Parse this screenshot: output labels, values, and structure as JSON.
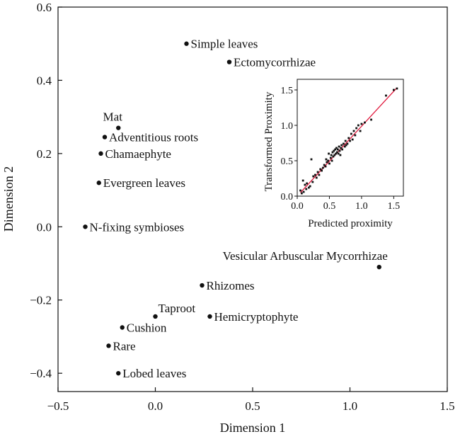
{
  "chart_data": [
    {
      "type": "scatter",
      "xlabel": "Dimension 1",
      "ylabel": "Dimension 2",
      "xlim": [
        -0.5,
        1.5
      ],
      "ylim": [
        -0.45,
        0.6
      ],
      "xticks": [
        -0.5,
        0.0,
        0.5,
        1.0,
        1.5
      ],
      "xtick_labels": [
        "−0.5",
        "0.0",
        "0.5",
        "1.0",
        "1.5"
      ],
      "yticks": [
        -0.4,
        -0.2,
        0.0,
        0.2,
        0.4,
        0.6
      ],
      "ytick_labels": [
        "−0.4",
        "−0.2",
        "0.0",
        "0.2",
        "0.4",
        "0.6"
      ],
      "grid": false,
      "points": [
        {
          "label": "Simple leaves",
          "x": 0.16,
          "y": 0.5
        },
        {
          "label": "Ectomycorrhizae",
          "x": 0.38,
          "y": 0.45
        },
        {
          "label": "Mat",
          "x": -0.19,
          "y": 0.27
        },
        {
          "label": "Adventitious roots",
          "x": -0.26,
          "y": 0.245
        },
        {
          "label": "Chamaephyte",
          "x": -0.28,
          "y": 0.2
        },
        {
          "label": "Evergreen leaves",
          "x": -0.29,
          "y": 0.12
        },
        {
          "label": "N-fixing symbioses",
          "x": -0.36,
          "y": 0.0
        },
        {
          "label": "Vesicular Arbuscular Mycorrhizae",
          "x": 1.15,
          "y": -0.11
        },
        {
          "label": "Rhizomes",
          "x": 0.24,
          "y": -0.16
        },
        {
          "label": "Taproot",
          "x": 0.0,
          "y": -0.245
        },
        {
          "label": "Hemicryptophyte",
          "x": 0.28,
          "y": -0.245
        },
        {
          "label": "Cushion",
          "x": -0.17,
          "y": -0.275
        },
        {
          "label": "Rare",
          "x": -0.24,
          "y": -0.325
        },
        {
          "label": "Lobed leaves",
          "x": -0.19,
          "y": -0.4
        }
      ]
    },
    {
      "type": "scatter",
      "xlabel": "Predicted proximity",
      "ylabel": "Transformed Proximity",
      "xlim": [
        0.0,
        1.65
      ],
      "ylim": [
        0.0,
        1.65
      ],
      "xticks": [
        0.0,
        0.5,
        1.0,
        1.5
      ],
      "xtick_labels": [
        "0.0",
        "0.5",
        "1.0",
        "1.5"
      ],
      "yticks": [
        0.0,
        0.5,
        1.0,
        1.5
      ],
      "ytick_labels": [
        "0.0",
        "0.5",
        "1.0",
        "1.5"
      ],
      "grid": false,
      "fit_line": {
        "from": [
          0.05,
          0.05
        ],
        "to": [
          1.55,
          1.53
        ],
        "color": "#e0183c"
      },
      "points": [
        [
          0.05,
          0.08
        ],
        [
          0.07,
          0.04
        ],
        [
          0.09,
          0.22
        ],
        [
          0.1,
          0.06
        ],
        [
          0.12,
          0.16
        ],
        [
          0.14,
          0.1
        ],
        [
          0.15,
          0.18
        ],
        [
          0.18,
          0.12
        ],
        [
          0.2,
          0.14
        ],
        [
          0.22,
          0.52
        ],
        [
          0.24,
          0.2
        ],
        [
          0.25,
          0.28
        ],
        [
          0.28,
          0.3
        ],
        [
          0.3,
          0.26
        ],
        [
          0.32,
          0.34
        ],
        [
          0.34,
          0.3
        ],
        [
          0.36,
          0.38
        ],
        [
          0.38,
          0.36
        ],
        [
          0.4,
          0.4
        ],
        [
          0.42,
          0.44
        ],
        [
          0.44,
          0.42
        ],
        [
          0.45,
          0.52
        ],
        [
          0.46,
          0.48
        ],
        [
          0.48,
          0.5
        ],
        [
          0.49,
          0.6
        ],
        [
          0.5,
          0.46
        ],
        [
          0.52,
          0.54
        ],
        [
          0.53,
          0.58
        ],
        [
          0.54,
          0.5
        ],
        [
          0.55,
          0.62
        ],
        [
          0.56,
          0.56
        ],
        [
          0.57,
          0.64
        ],
        [
          0.58,
          0.58
        ],
        [
          0.59,
          0.66
        ],
        [
          0.6,
          0.6
        ],
        [
          0.61,
          0.68
        ],
        [
          0.62,
          0.62
        ],
        [
          0.63,
          0.66
        ],
        [
          0.64,
          0.6
        ],
        [
          0.65,
          0.7
        ],
        [
          0.66,
          0.64
        ],
        [
          0.67,
          0.58
        ],
        [
          0.68,
          0.68
        ],
        [
          0.69,
          0.72
        ],
        [
          0.7,
          0.66
        ],
        [
          0.72,
          0.74
        ],
        [
          0.74,
          0.7
        ],
        [
          0.75,
          0.78
        ],
        [
          0.76,
          0.72
        ],
        [
          0.78,
          0.74
        ],
        [
          0.8,
          0.82
        ],
        [
          0.82,
          0.78
        ],
        [
          0.84,
          0.88
        ],
        [
          0.86,
          0.8
        ],
        [
          0.88,
          0.92
        ],
        [
          0.9,
          0.86
        ],
        [
          0.92,
          0.96
        ],
        [
          0.95,
          1.0
        ],
        [
          0.98,
          0.92
        ],
        [
          1.0,
          1.02
        ],
        [
          1.05,
          1.04
        ],
        [
          1.15,
          1.08
        ],
        [
          1.38,
          1.42
        ],
        [
          1.5,
          1.5
        ],
        [
          1.55,
          1.52
        ]
      ]
    }
  ]
}
